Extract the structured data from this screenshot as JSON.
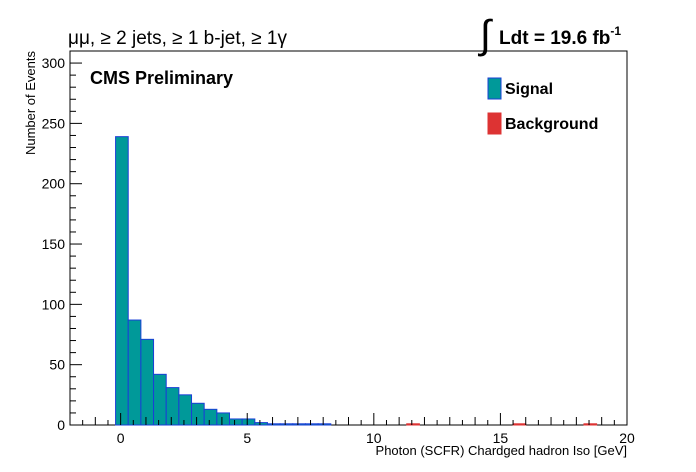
{
  "chart_data": {
    "type": "bar",
    "title_left": "μμ, ≥ 2 jets, ≥ 1 b-jet, ≥ 1γ",
    "title_right": "Ldt = 19.6 fb",
    "title_right_sup": "-1",
    "label": "CMS Preliminary",
    "xlabel": "Photon (SCFR) Chardged hadron Iso [GeV]",
    "ylabel": "Number of Events",
    "xlim": [
      -2,
      20
    ],
    "ylim": [
      0,
      310
    ],
    "x_ticks": [
      0,
      5,
      10,
      15,
      20
    ],
    "y_ticks": [
      0,
      50,
      100,
      150,
      200,
      250,
      300
    ],
    "bin_width": 0.5,
    "legend_position": "top-right",
    "series": [
      {
        "name": "Signal",
        "color": "#009999",
        "edge_color": "#1a3fd6",
        "bin_starts": [
          -0.2,
          0.3,
          0.8,
          1.3,
          1.8,
          2.3,
          2.8,
          3.3,
          3.8,
          4.3,
          4.8,
          5.3,
          5.8,
          6.3,
          6.8,
          7.3,
          7.8
        ],
        "values": [
          239,
          87,
          71,
          42,
          31,
          25,
          18,
          13,
          10,
          5,
          5,
          2,
          1,
          1,
          1,
          1,
          1
        ]
      },
      {
        "name": "Background",
        "color": "#dd3333",
        "edge_color": "#dd3333",
        "bin_starts": [
          11.3,
          15.5,
          18.3
        ],
        "values": [
          1,
          1,
          1
        ]
      }
    ]
  }
}
